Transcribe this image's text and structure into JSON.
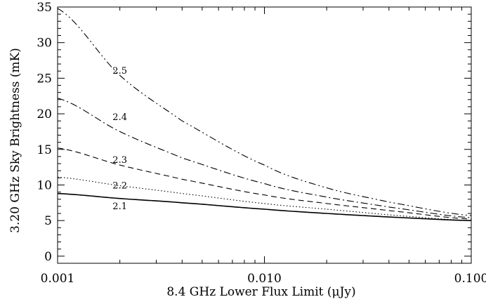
{
  "chart_data": {
    "type": "line",
    "title": "",
    "xlabel": "8.4 GHz Lower Flux Limit (μJy)",
    "ylabel": "3.20 GHz Sky Brightness (mK)",
    "x_scale": "log",
    "xlim": [
      0.001,
      0.1
    ],
    "ylim": [
      -1,
      35
    ],
    "grid": false,
    "legend": "none",
    "x_ticks": [
      {
        "value": 0.001,
        "label": "0.001"
      },
      {
        "value": 0.01,
        "label": "0.010"
      },
      {
        "value": 0.1,
        "label": "0.100"
      }
    ],
    "y_ticks": [
      {
        "value": 0,
        "label": "0"
      },
      {
        "value": 5,
        "label": "5"
      },
      {
        "value": 10,
        "label": "10"
      },
      {
        "value": 15,
        "label": "15"
      },
      {
        "value": 20,
        "label": "20"
      },
      {
        "value": 25,
        "label": "25"
      },
      {
        "value": 30,
        "label": "30"
      },
      {
        "value": 35,
        "label": "35"
      }
    ],
    "x": [
      0.001,
      0.002,
      0.004,
      0.01,
      0.02,
      0.04,
      0.1
    ],
    "series": [
      {
        "label": "2.1",
        "style": "solid",
        "values": [
          8.8,
          8.1,
          7.5,
          6.6,
          6.0,
          5.5,
          5.0
        ],
        "label_at": {
          "x": 0.002,
          "y": 7.1
        }
      },
      {
        "label": "2.2",
        "style": "dotted",
        "values": [
          11.1,
          9.9,
          8.8,
          7.4,
          6.6,
          5.8,
          5.0
        ],
        "label_at": {
          "x": 0.002,
          "y": 10.0
        }
      },
      {
        "label": "2.3",
        "style": "dashed",
        "values": [
          15.2,
          12.8,
          10.8,
          8.6,
          7.4,
          6.4,
          5.2
        ],
        "label_at": {
          "x": 0.002,
          "y": 13.6
        }
      },
      {
        "label": "2.4",
        "style": "dash-dot",
        "values": [
          22.2,
          17.5,
          13.8,
          10.2,
          8.3,
          6.9,
          5.4
        ],
        "label_at": {
          "x": 0.002,
          "y": 19.6
        }
      },
      {
        "label": "2.5",
        "style": "dash-dot-dot",
        "values": [
          34.8,
          25.4,
          19.0,
          12.8,
          9.6,
          7.6,
          5.7
        ],
        "label_at": {
          "x": 0.002,
          "y": 26.1
        }
      }
    ]
  },
  "colors": {
    "line": "#000000",
    "background": "#ffffff"
  }
}
